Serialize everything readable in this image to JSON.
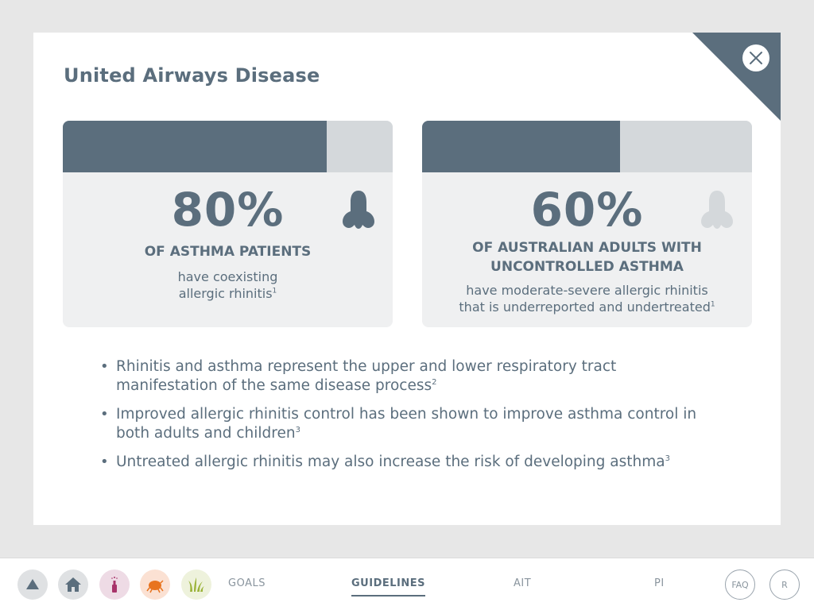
{
  "modal": {
    "title": "United Airways Disease"
  },
  "cards": [
    {
      "percent_label": "80%",
      "bar_fill_fraction": 0.8,
      "heading": "OF ASTHMA PATIENTS",
      "sub_line1": "have coexisting",
      "sub_line2": "allergic rhinitis",
      "sub_ref": "1",
      "nose_color": "#5b6e7d"
    },
    {
      "percent_label": "60%",
      "bar_fill_fraction": 0.6,
      "heading_line1": "OF AUSTRALIAN ADULTS WITH",
      "heading_line2": "UNCONTROLLED ASTHMA",
      "sub_line1": "have moderate-severe allergic rhinitis",
      "sub_line2": "that is underreported and undertreated",
      "sub_ref": "1",
      "nose_color": "#d4d8db"
    }
  ],
  "bullets": [
    {
      "text": "Rhinitis and asthma represent the upper and lower respiratory tract manifestation of the same disease process",
      "ref": "2"
    },
    {
      "text": "Improved allergic rhinitis control has been shown to improve asthma control in both adults and children",
      "ref": "3"
    },
    {
      "text": "Untreated allergic rhinitis may also increase the risk of developing asthma",
      "ref": "3"
    }
  ],
  "footer": {
    "icons": [
      "up-arrow-icon",
      "home-icon",
      "nasal-spray-icon",
      "dust-mite-icon",
      "grass-icon"
    ],
    "nav": {
      "goals": "GOALS",
      "guidelines": "GUIDELINES",
      "ait": "AIT",
      "pi": "PI"
    },
    "faq": "FAQ",
    "r": "R"
  },
  "colors": {
    "primary": "#5b6e7d",
    "bar_bg": "#d4d8db",
    "card_bg": "#eff0f1",
    "page_bg": "#e7e7e7",
    "spray_bg": "#eedbe5",
    "mite_bg": "#fbe1d3",
    "grass_bg": "#eef2dc"
  }
}
